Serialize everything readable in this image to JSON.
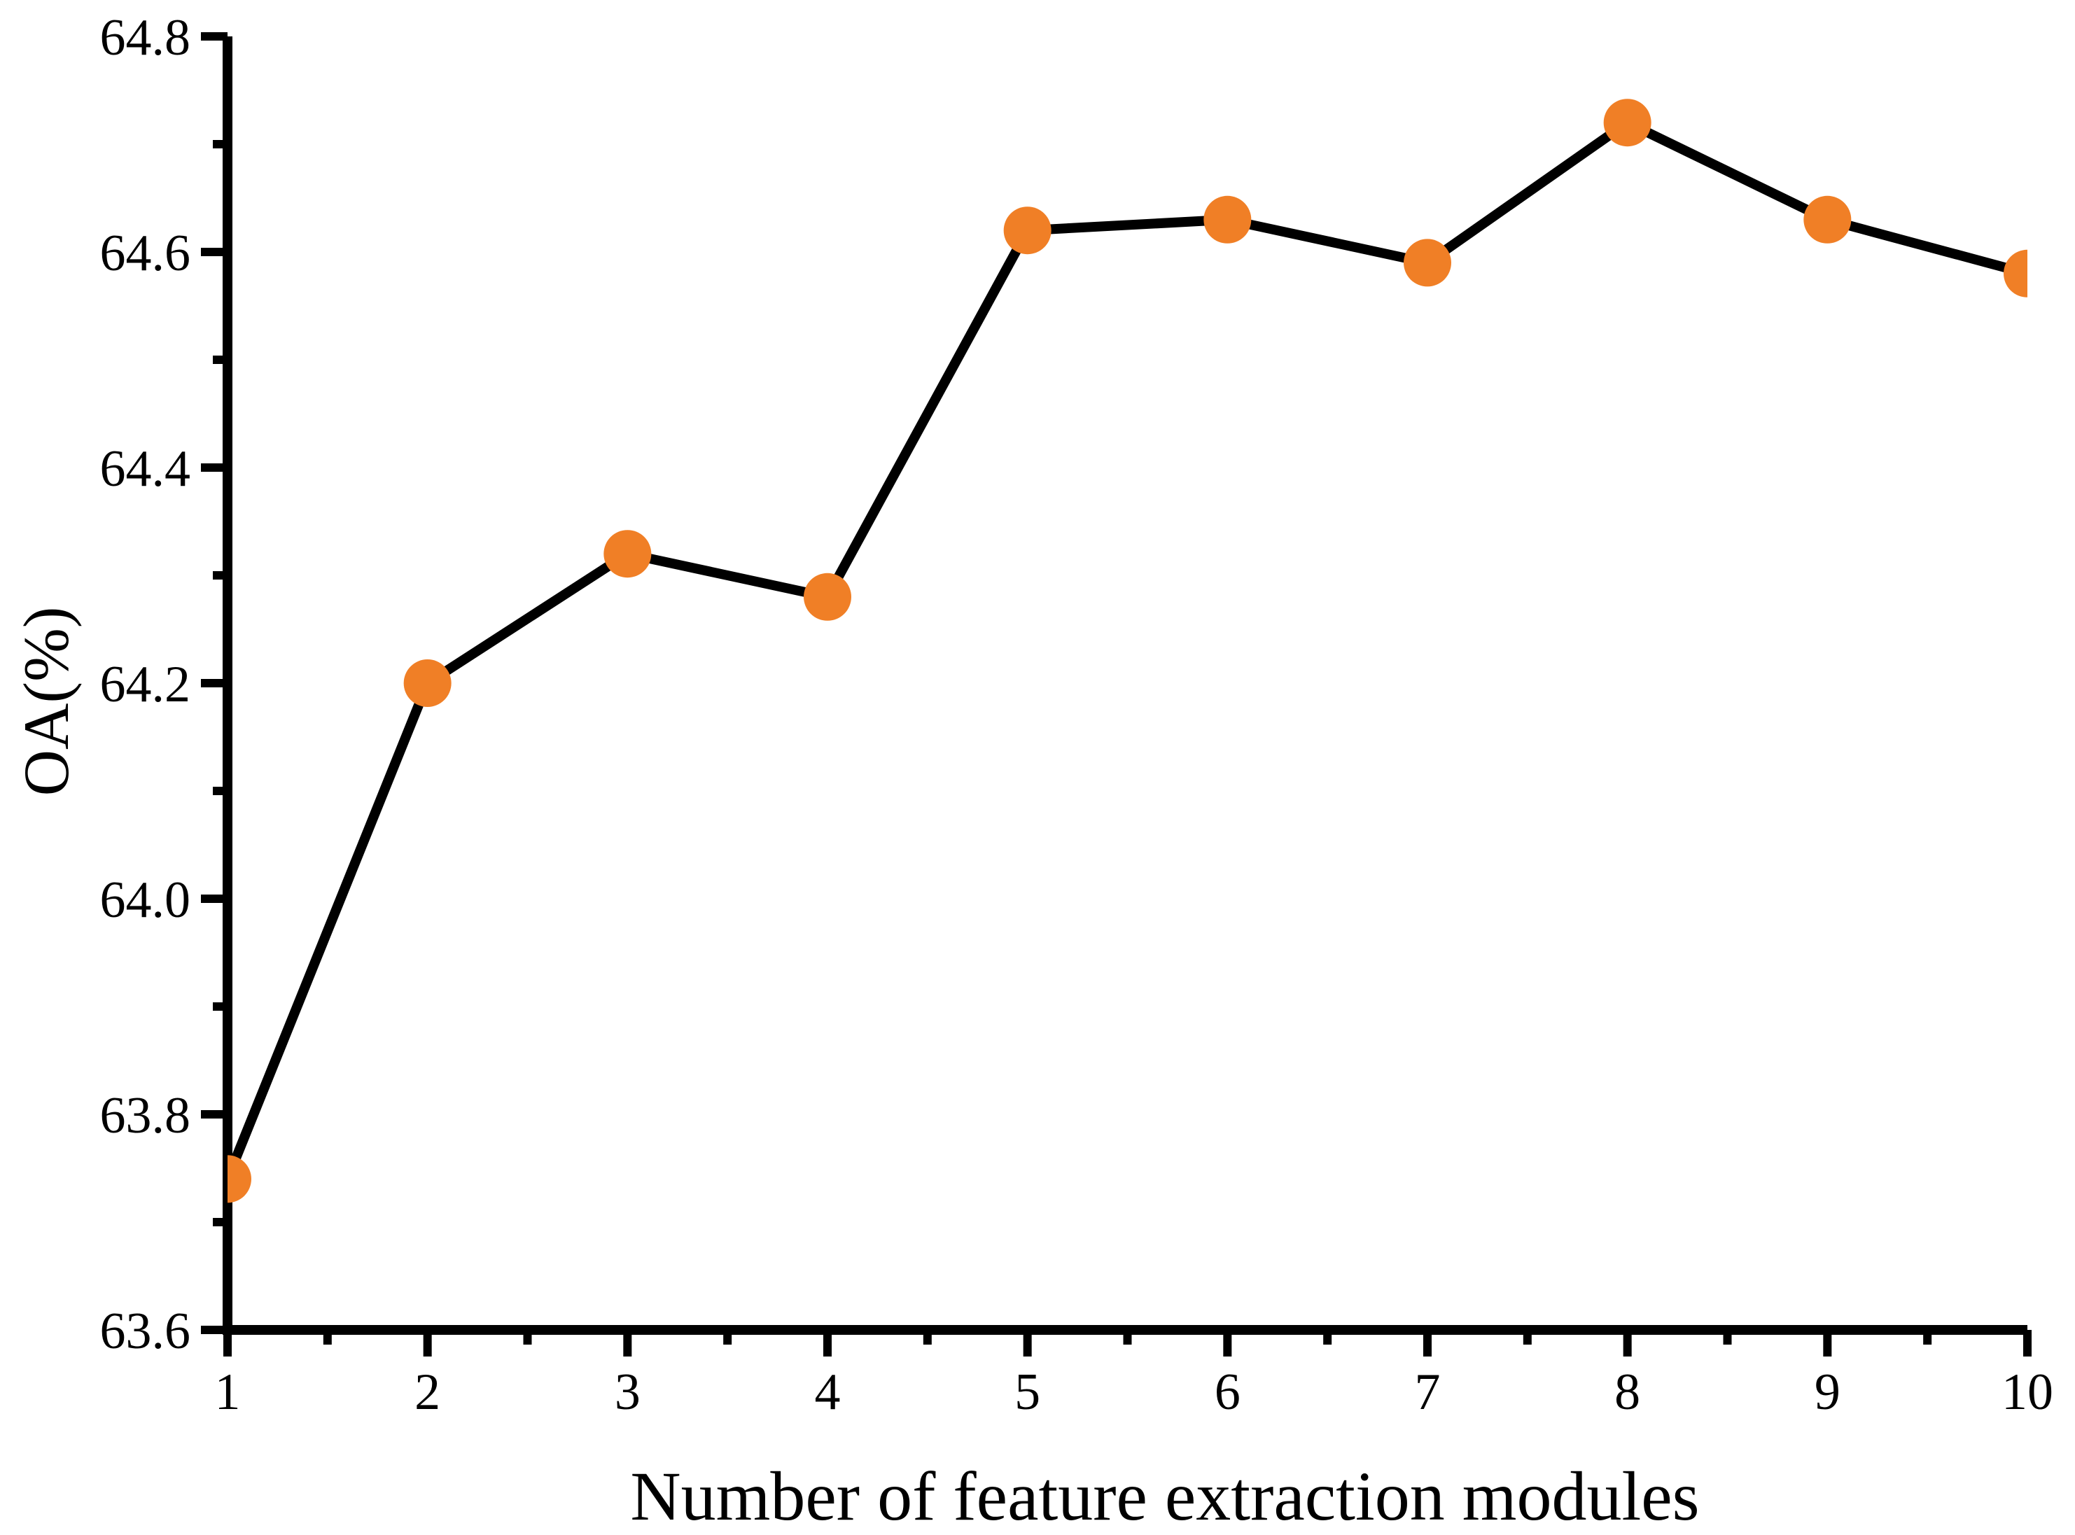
{
  "chart_data": {
    "type": "line",
    "title": "",
    "xlabel": "Number of feature extraction modules",
    "ylabel": "OA(%)",
    "x": [
      1,
      2,
      3,
      4,
      5,
      6,
      7,
      8,
      9,
      10
    ],
    "series": [
      {
        "name": "OA",
        "values": [
          63.74,
          64.2,
          64.32,
          64.28,
          64.62,
          64.63,
          64.59,
          64.72,
          64.63,
          64.58
        ]
      }
    ],
    "xlim": [
      1,
      10
    ],
    "ylim": [
      63.6,
      64.8
    ],
    "x_tick_labels": [
      "1",
      "2",
      "3",
      "4",
      "5",
      "6",
      "7",
      "8",
      "9",
      "10"
    ],
    "x_tick_values": [
      1,
      2,
      3,
      4,
      5,
      6,
      7,
      8,
      9,
      10
    ],
    "y_tick_labels": [
      "63.6",
      "63.8",
      "64.0",
      "64.2",
      "64.4",
      "64.6",
      "64.8"
    ],
    "y_tick_values": [
      63.6,
      63.8,
      64.0,
      64.2,
      64.4,
      64.6,
      64.8
    ],
    "x_minor_step": 0.5,
    "y_minor_step": 0.1,
    "grid": false,
    "legend": null,
    "line_color": "#000000",
    "marker_color": "#F07F26",
    "axis_color": "#000000",
    "background_color": "#FFFFFF"
  }
}
